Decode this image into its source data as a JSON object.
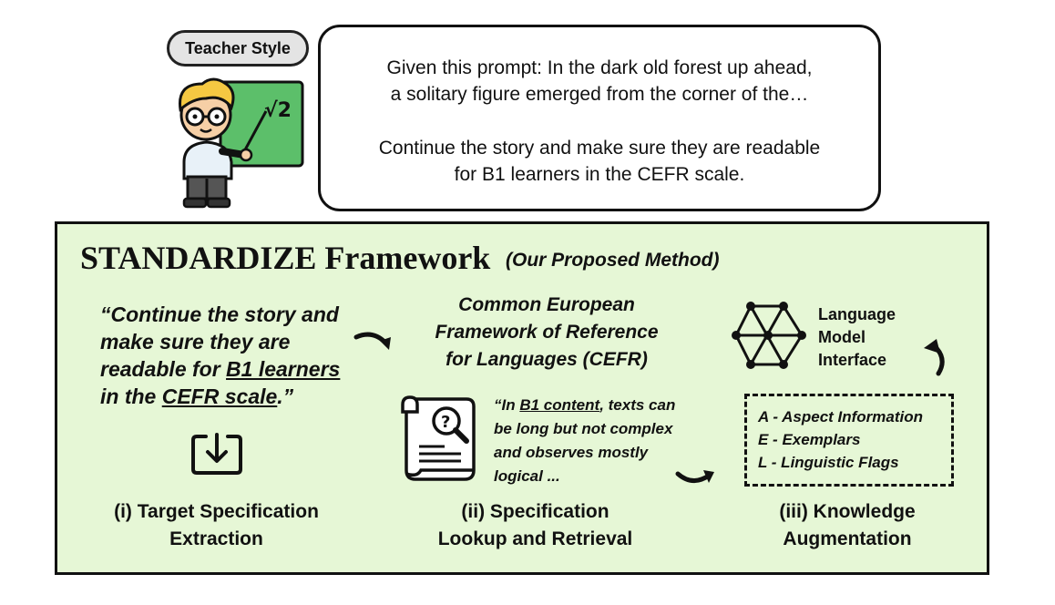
{
  "teacher": {
    "label": "Teacher Style"
  },
  "prompt": {
    "line1": "Given this prompt: In the dark old forest up ahead,",
    "line2": "a solitary figure emerged from the corner of the…",
    "line3": "Continue the story and make sure they are readable",
    "line4": "for B1 learners in the CEFR scale."
  },
  "framework": {
    "title": "STANDARDIZE Framework",
    "subtitle": "(Our Proposed Method)"
  },
  "step1": {
    "q1": "“Continue the story and",
    "q2": "make sure they are",
    "q3a": "readable for ",
    "q3b": "B1 learners",
    "q4a": "in the ",
    "q4b": "CEFR scale",
    "q4c": ".”",
    "label1": "(i) Target Specification",
    "label2": "Extraction"
  },
  "step2": {
    "cefr1": "Common European",
    "cefr2": "Framework of Reference",
    "cefr3": "for Languages (CEFR)",
    "b1a": "“In ",
    "b1b": "B1 content",
    "b1c": ", texts can",
    "b2": "be long but not complex",
    "b3": "and observes mostly",
    "b4": "logical ...",
    "label1": "(ii) Specification",
    "label2": "Lookup and Retrieval"
  },
  "step3": {
    "lm1": "Language",
    "lm2": "Model",
    "lm3": "Interface",
    "a": "A - Aspect Information",
    "e": "E - Exemplars",
    "l": "L - Linguistic Flags",
    "label1": "(iii) Knowledge",
    "label2": "Augmentation"
  },
  "board": {
    "symbol": "√2"
  },
  "colors": {
    "framework_bg": "#e6f7d6",
    "board": "#5cbf6a",
    "hair": "#f5c842",
    "pill": "#e4e4e4"
  }
}
